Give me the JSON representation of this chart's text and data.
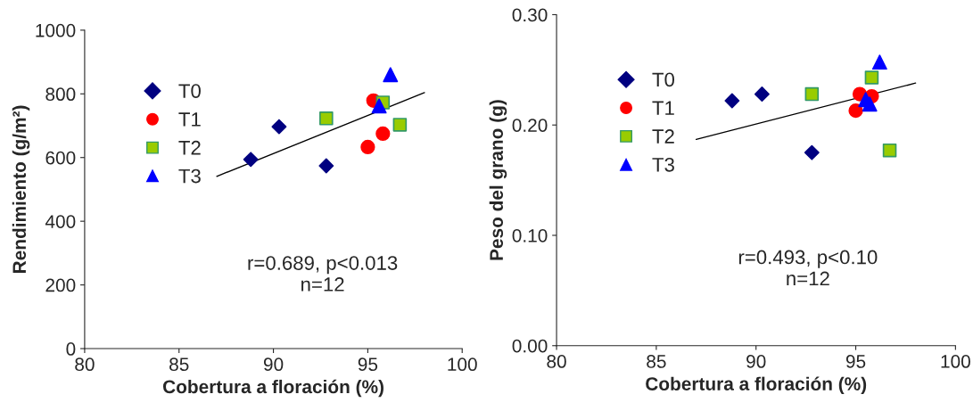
{
  "chart_data": [
    {
      "type": "scatter",
      "xlabel": "Cobertura a floración (%)",
      "ylabel": "Rendimiento (g/m²)",
      "xlim": [
        80,
        100
      ],
      "xticks": [
        80,
        85,
        90,
        95,
        100
      ],
      "ylim": [
        0,
        1000
      ],
      "yticks": [
        0,
        200,
        400,
        600,
        800,
        1000
      ],
      "legend": "left",
      "grid": false,
      "annotations": [
        "r=0.689, p<0.013\nn=12"
      ],
      "series": [
        {
          "name": "T0",
          "color": "#000080",
          "marker": "diamond",
          "x": [
            88.8,
            90.3,
            92.8
          ],
          "values": [
            594,
            697,
            574
          ]
        },
        {
          "name": "T1",
          "color": "#ff0000",
          "marker": "circle",
          "x": [
            95.0,
            95.3,
            95.8
          ],
          "values": [
            633,
            779,
            675
          ]
        },
        {
          "name": "T2",
          "color": "#99cc00",
          "marker": "square",
          "x": [
            92.8,
            95.8,
            96.7
          ],
          "values": [
            723,
            773,
            703
          ]
        },
        {
          "name": "T3",
          "color": "#0000ff",
          "marker": "triangle",
          "x": [
            95.6,
            96.2
          ],
          "values": [
            762,
            860
          ]
        },
        {
          "type": "line",
          "color": "#000000",
          "marker": "none",
          "x": [
            87.0,
            98.0
          ],
          "values": [
            541,
            804
          ]
        }
      ]
    },
    {
      "type": "scatter",
      "xlabel": "Cobertura a floración (%)",
      "ylabel": "Peso del grano (g)",
      "xlim": [
        80,
        100
      ],
      "xticks": [
        80,
        85,
        90,
        95,
        100
      ],
      "ylim": [
        0,
        0.3
      ],
      "yticks": [
        {
          "value": 0,
          "label": "0.00"
        },
        {
          "value": 0.1,
          "label": "0.10"
        },
        {
          "value": 0.2,
          "label": "0.20"
        },
        {
          "value": 0.3,
          "label": "0.30"
        }
      ],
      "legend": "left",
      "grid": false,
      "annotations": [
        "r=0.493, p<0.10\nn=12"
      ],
      "series": [
        {
          "name": "T0",
          "color": "#000080",
          "marker": "diamond",
          "x": [
            88.8,
            90.3,
            92.8
          ],
          "values": [
            0.222,
            0.228,
            0.175
          ]
        },
        {
          "name": "T1",
          "color": "#ff0000",
          "marker": "circle",
          "x": [
            95.0,
            95.2,
            95.8
          ],
          "values": [
            0.213,
            0.228,
            0.226
          ]
        },
        {
          "name": "T2",
          "color": "#99cc00",
          "marker": "square",
          "x": [
            92.8,
            95.8,
            96.7
          ],
          "values": [
            0.228,
            0.243,
            0.177
          ]
        },
        {
          "name": "T3",
          "color": "#0000ff",
          "marker": "triangle",
          "x": [
            95.5,
            95.7,
            96.2
          ],
          "values": [
            0.223,
            0.219,
            0.257
          ]
        },
        {
          "type": "line",
          "color": "#000000",
          "marker": "none",
          "x": [
            87.0,
            98.0
          ],
          "values": [
            0.187,
            0.238
          ]
        }
      ]
    }
  ]
}
